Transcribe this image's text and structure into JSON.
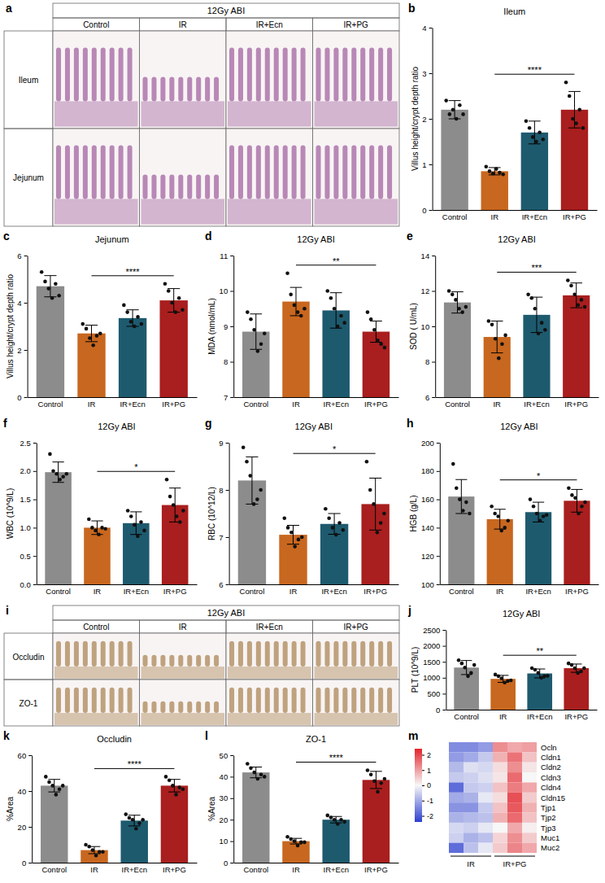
{
  "chart_data": [
    {
      "type": "image",
      "panel": "a",
      "title": "12Gy ABI",
      "columns": [
        "Control",
        "IR",
        "IR+Ecn",
        "IR+PG"
      ],
      "rows": [
        "Ileum",
        "Jejunum"
      ],
      "color": "#8e3f8c"
    },
    {
      "type": "bar",
      "panel": "b",
      "title": "Ileum",
      "y_label": "Villus height/crypt depth ratio",
      "categories": [
        "Control",
        "IR",
        "IR+Ecn",
        "IR+PG"
      ],
      "values": [
        2.2,
        0.85,
        1.7,
        2.2
      ],
      "errors": [
        0.2,
        0.08,
        0.25,
        0.4
      ],
      "points": [
        [
          2.4,
          2.1,
          2.2,
          2.0,
          2.3,
          2.1
        ],
        [
          0.95,
          0.85,
          0.8,
          0.9,
          0.82,
          0.78
        ],
        [
          1.95,
          1.8,
          1.6,
          1.5,
          1.7,
          1.55
        ],
        [
          2.8,
          2.5,
          2.0,
          1.9,
          2.2,
          1.8
        ]
      ],
      "colors": [
        "#8c8c8c",
        "#c8671f",
        "#1e5a6e",
        "#a91e1e"
      ],
      "ylim": [
        0,
        4
      ],
      "yticks": [
        0,
        1,
        2,
        3,
        4
      ],
      "annotations": [
        {
          "from": "IR",
          "to": "IR+PG",
          "label": "****"
        }
      ]
    },
    {
      "type": "bar",
      "panel": "c",
      "title": "Jejunum",
      "y_label": "Villus height/crypt depth ratio",
      "categories": [
        "Control",
        "IR",
        "IR+Ecn",
        "IR+PG"
      ],
      "values": [
        4.7,
        2.7,
        3.35,
        4.1
      ],
      "errors": [
        0.45,
        0.35,
        0.35,
        0.5
      ],
      "points": [
        [
          5.3,
          4.9,
          4.6,
          4.2,
          4.8,
          4.3
        ],
        [
          3.1,
          2.9,
          2.5,
          2.2,
          2.6,
          2.7
        ],
        [
          3.9,
          3.6,
          3.2,
          3.0,
          3.4,
          3.1
        ],
        [
          4.8,
          4.5,
          4.0,
          3.6,
          4.2,
          3.7
        ]
      ],
      "colors": [
        "#8c8c8c",
        "#c8671f",
        "#1e5a6e",
        "#a91e1e"
      ],
      "ylim": [
        0,
        6
      ],
      "yticks": [
        0,
        2,
        4,
        6
      ],
      "annotations": [
        {
          "from": "IR",
          "to": "IR+PG",
          "label": "****"
        }
      ]
    },
    {
      "type": "bar",
      "panel": "d",
      "title": "12Gy ABI",
      "y_label": "MDA (nmol/mL)",
      "categories": [
        "Control",
        "IR",
        "IR+Ecn",
        "IR+PG"
      ],
      "values": [
        8.85,
        9.7,
        9.45,
        8.85
      ],
      "errors": [
        0.5,
        0.4,
        0.5,
        0.3
      ],
      "points": [
        [
          9.4,
          9.2,
          8.9,
          8.3,
          8.5,
          8.8
        ],
        [
          10.5,
          9.9,
          9.6,
          9.4,
          9.3,
          9.5
        ],
        [
          10.0,
          9.8,
          9.5,
          9.0,
          9.3,
          9.1
        ],
        [
          9.4,
          9.2,
          8.9,
          8.6,
          8.5,
          8.4
        ]
      ],
      "colors": [
        "#8c8c8c",
        "#c8671f",
        "#1e5a6e",
        "#a91e1e"
      ],
      "ylim": [
        7,
        11
      ],
      "yticks": [
        7,
        8,
        9,
        10,
        11
      ],
      "annotations": [
        {
          "from": "IR",
          "to": "IR+PG",
          "label": "**"
        }
      ]
    },
    {
      "type": "bar",
      "panel": "e",
      "title": "12Gy ABI",
      "y_label": "SOD ( U/mL)",
      "categories": [
        "Control",
        "IR",
        "IR+Ecn",
        "IR+PG"
      ],
      "values": [
        11.35,
        9.4,
        10.65,
        11.75
      ],
      "errors": [
        0.6,
        0.9,
        1.0,
        0.7
      ],
      "points": [
        [
          12.0,
          11.8,
          11.5,
          11.0,
          10.8,
          11.1
        ],
        [
          10.3,
          10.1,
          9.3,
          8.2,
          9.0,
          9.5
        ],
        [
          11.8,
          11.6,
          11.0,
          9.6,
          10.2,
          9.8
        ],
        [
          12.6,
          12.3,
          11.8,
          11.2,
          11.5,
          11.1
        ]
      ],
      "colors": [
        "#8c8c8c",
        "#c8671f",
        "#1e5a6e",
        "#a91e1e"
      ],
      "ylim": [
        6,
        14
      ],
      "yticks": [
        6,
        8,
        10,
        12,
        14
      ],
      "annotations": [
        {
          "from": "IR",
          "to": "IR+PG",
          "label": "***"
        }
      ]
    },
    {
      "type": "bar",
      "panel": "f",
      "title": "12Gy ABI",
      "y_label": "WBC (10^9/L)",
      "categories": [
        "Control",
        "IR",
        "IR+Ecn",
        "IR+PG"
      ],
      "values": [
        1.98,
        1.0,
        1.08,
        1.4
      ],
      "errors": [
        0.18,
        0.12,
        0.2,
        0.3
      ],
      "points": [
        [
          2.3,
          2.0,
          1.95,
          1.85,
          1.9,
          1.95
        ],
        [
          1.15,
          1.0,
          0.95,
          0.88,
          1.0,
          0.98
        ],
        [
          1.3,
          1.2,
          1.05,
          0.85,
          1.1,
          0.95
        ],
        [
          1.85,
          1.55,
          1.4,
          1.2,
          1.1,
          1.3
        ]
      ],
      "colors": [
        "#8c8c8c",
        "#c8671f",
        "#1e5a6e",
        "#a91e1e"
      ],
      "ylim": [
        0,
        2.5
      ],
      "yticks": [
        {
          "value": 0,
          "label": "0.0"
        },
        0.5,
        {
          "value": 1,
          "label": "1.0"
        },
        1.5,
        {
          "value": 2,
          "label": "2.0"
        },
        2.5
      ],
      "annotations": [
        {
          "from": "IR",
          "to": "IR+PG",
          "label": "*"
        }
      ]
    },
    {
      "type": "bar",
      "panel": "g",
      "title": "12Gy ABI",
      "y_label": "RBC (10^12/L)",
      "categories": [
        "Control",
        "IR",
        "IR+Ecn",
        "IR+PG"
      ],
      "values": [
        8.2,
        7.05,
        7.28,
        7.7
      ],
      "errors": [
        0.5,
        0.2,
        0.22,
        0.55
      ],
      "points": [
        [
          8.9,
          8.6,
          8.3,
          7.7,
          7.8,
          8.0
        ],
        [
          7.4,
          7.2,
          7.1,
          6.8,
          6.95,
          7.0
        ],
        [
          7.6,
          7.4,
          7.2,
          7.05,
          7.3,
          7.15
        ],
        [
          8.6,
          8.0,
          7.7,
          7.1,
          7.3,
          7.5
        ]
      ],
      "colors": [
        "#8c8c8c",
        "#c8671f",
        "#1e5a6e",
        "#a91e1e"
      ],
      "ylim": [
        6,
        9
      ],
      "yticks": [
        6,
        7,
        8,
        9
      ],
      "annotations": [
        {
          "from": "IR",
          "to": "IR+PG",
          "label": "*"
        }
      ]
    },
    {
      "type": "bar",
      "panel": "h",
      "title": "12Gy ABI",
      "y_label": "HGB (g/L)",
      "categories": [
        "Control",
        "IR",
        "IR+Ecn",
        "IR+PG"
      ],
      "values": [
        162,
        146,
        151,
        159
      ],
      "errors": [
        12,
        7,
        7,
        8
      ],
      "points": [
        [
          185,
          168,
          160,
          152,
          158,
          150
        ],
        [
          155,
          150,
          148,
          138,
          140,
          145
        ],
        [
          160,
          155,
          150,
          145,
          148,
          149
        ],
        [
          168,
          163,
          161,
          150,
          155,
          158
        ]
      ],
      "colors": [
        "#8c8c8c",
        "#c8671f",
        "#1e5a6e",
        "#a91e1e"
      ],
      "ylim": [
        100,
        200
      ],
      "yticks": [
        100,
        120,
        140,
        160,
        180,
        200
      ],
      "annotations": [
        {
          "from": "IR",
          "to": "IR+PG",
          "label": "*"
        }
      ]
    },
    {
      "type": "image",
      "panel": "i",
      "title": "12Gy ABI",
      "columns": [
        "Control",
        "IR",
        "IR+Ecn",
        "IR+PG"
      ],
      "rows": [
        "Occludin",
        "ZO-1"
      ],
      "color": "#9a6a2e"
    },
    {
      "type": "bar",
      "panel": "j",
      "title": "12Gy ABI",
      "y_label": "PLT (10^9/L)",
      "categories": [
        "Control",
        "IR",
        "IR+Ecn",
        "IR+PG"
      ],
      "values": [
        1320,
        965,
        1135,
        1300
      ],
      "errors": [
        220,
        110,
        140,
        130
      ],
      "points": [
        [
          1550,
          1450,
          1320,
          1050,
          1150,
          1400
        ],
        [
          1100,
          1050,
          980,
          850,
          900,
          920
        ],
        [
          1300,
          1250,
          1150,
          1000,
          1050,
          1060
        ],
        [
          1450,
          1400,
          1300,
          1150,
          1200,
          1300
        ]
      ],
      "colors": [
        "#8c8c8c",
        "#c8671f",
        "#1e5a6e",
        "#a91e1e"
      ],
      "ylim": [
        0,
        2500
      ],
      "yticks": [
        0,
        500,
        1000,
        1500,
        2000,
        2500
      ],
      "annotations": [
        {
          "from": "IR",
          "to": "IR+PG",
          "label": "**"
        }
      ]
    },
    {
      "type": "bar",
      "panel": "k",
      "title": "Occludin",
      "y_label": "%Area",
      "categories": [
        "Control",
        "IR",
        "IR+Ecn",
        "IR+PG"
      ],
      "values": [
        43,
        7,
        23.5,
        43
      ],
      "errors": [
        3.5,
        2,
        3,
        3.5
      ],
      "points": [
        [
          48,
          45,
          43,
          38,
          41,
          43
        ],
        [
          10,
          9,
          7,
          4,
          6,
          6
        ],
        [
          27,
          25,
          24,
          19,
          22,
          24
        ],
        [
          48,
          46,
          43,
          38,
          42,
          41
        ]
      ],
      "colors": [
        "#8c8c8c",
        "#c8671f",
        "#1e5a6e",
        "#a91e1e"
      ],
      "ylim": [
        0,
        60
      ],
      "yticks": [
        0,
        20,
        40,
        60
      ],
      "annotations": [
        {
          "from": "IR",
          "to": "IR+PG",
          "label": "****"
        }
      ]
    },
    {
      "type": "bar",
      "panel": "l",
      "title": "ZO-1",
      "y_label": "%Area",
      "categories": [
        "Control",
        "IR",
        "IR+Ecn",
        "IR+PG"
      ],
      "values": [
        42,
        10,
        20,
        38.5
      ],
      "errors": [
        2.5,
        1.3,
        1.5,
        4
      ],
      "points": [
        [
          46,
          44,
          42,
          39,
          41,
          40
        ],
        [
          12,
          11,
          10,
          8,
          9.5,
          9.5
        ],
        [
          22,
          21,
          20,
          18,
          20,
          19
        ],
        [
          43,
          41,
          38,
          33,
          37,
          39
        ]
      ],
      "colors": [
        "#8c8c8c",
        "#c8671f",
        "#1e5a6e",
        "#a91e1e"
      ],
      "ylim": [
        0,
        50
      ],
      "yticks": [
        0,
        10,
        20,
        30,
        40,
        50
      ],
      "annotations": [
        {
          "from": "IR",
          "to": "IR+PG",
          "label": "****"
        }
      ]
    },
    {
      "type": "heatmap",
      "panel": "m",
      "rows": [
        "Ocln",
        "Cldn1",
        "Cldn2",
        "Cldn3",
        "Cldn4",
        "Cldn15",
        "Tjp1",
        "Tjp2",
        "Tjp3",
        "Muc1",
        "Muc2"
      ],
      "x_groups": [
        "IR",
        "IR+PG"
      ],
      "values": [
        [
          -1.4,
          -1.4,
          -1.2,
          1.2,
          0.9,
          1.0
        ],
        [
          -1.2,
          -1.0,
          -0.6,
          0.8,
          1.5,
          0.6
        ],
        [
          -0.8,
          -0.3,
          -0.4,
          0.3,
          1.2,
          0.2
        ],
        [
          -0.6,
          -0.5,
          -0.3,
          0.2,
          1.6,
          0.0
        ],
        [
          -1.8,
          -0.6,
          -0.5,
          0.6,
          1.4,
          0.9
        ],
        [
          -1.0,
          -0.9,
          -0.2,
          0.3,
          1.9,
          0.5
        ],
        [
          -1.3,
          -1.3,
          -0.6,
          0.6,
          1.8,
          0.8
        ],
        [
          -0.9,
          -0.8,
          -0.7,
          0.8,
          1.6,
          0.6
        ],
        [
          -0.4,
          -0.5,
          -0.2,
          0.0,
          0.9,
          0.1
        ],
        [
          -0.5,
          -0.9,
          -0.7,
          0.4,
          1.2,
          0.5
        ],
        [
          -1.8,
          -0.7,
          -0.2,
          0.5,
          1.3,
          0.9
        ]
      ],
      "colorbar_lim": [
        -2.4,
        2.4
      ],
      "colorbar_ticks": [
        2,
        1,
        0,
        -1,
        -2
      ]
    }
  ]
}
